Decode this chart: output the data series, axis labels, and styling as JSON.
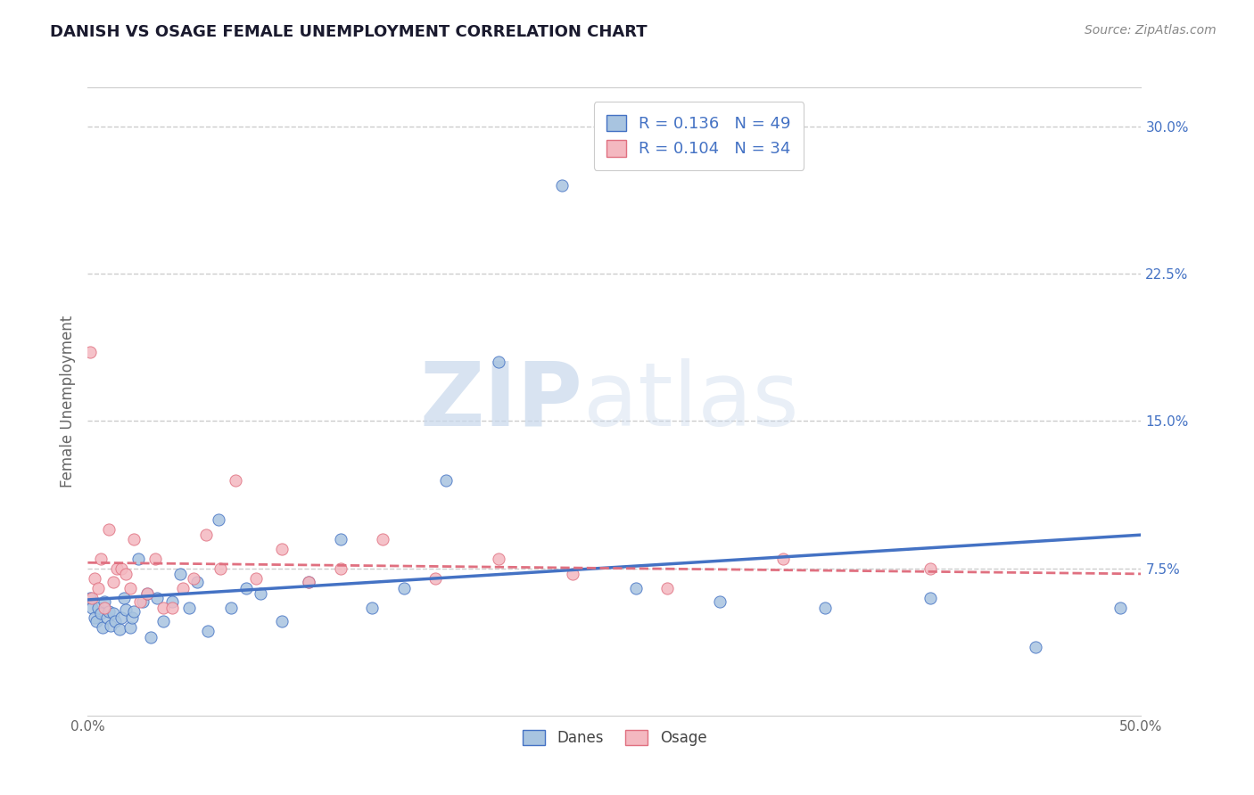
{
  "title": "DANISH VS OSAGE FEMALE UNEMPLOYMENT CORRELATION CHART",
  "source": "Source: ZipAtlas.com",
  "xlabel": "",
  "ylabel": "Female Unemployment",
  "xlim": [
    0.0,
    0.5
  ],
  "ylim": [
    0.0,
    0.32
  ],
  "yticks": [
    0.0,
    0.075,
    0.15,
    0.225,
    0.3
  ],
  "ytick_labels": [
    "",
    "7.5%",
    "15.0%",
    "22.5%",
    "30.0%"
  ],
  "xticks": [
    0.0,
    0.1,
    0.2,
    0.3,
    0.4,
    0.5
  ],
  "xtick_labels": [
    "0.0%",
    "",
    "",
    "",
    "",
    "50.0%"
  ],
  "danes_color": "#a8c4e0",
  "osage_color": "#f4b8c0",
  "danes_line_color": "#4472c4",
  "osage_line_color": "#e07080",
  "danes_R": 0.136,
  "danes_N": 49,
  "osage_R": 0.104,
  "osage_N": 34,
  "legend_label_danes": "Danes",
  "legend_label_osage": "Osage",
  "watermark_zip": "ZIP",
  "watermark_atlas": "atlas",
  "background_color": "#ffffff",
  "grid_color": "#cccccc",
  "title_color": "#4472c4",
  "danes_x": [
    0.001,
    0.002,
    0.003,
    0.004,
    0.005,
    0.006,
    0.007,
    0.008,
    0.009,
    0.01,
    0.011,
    0.012,
    0.013,
    0.015,
    0.016,
    0.017,
    0.018,
    0.02,
    0.021,
    0.022,
    0.024,
    0.026,
    0.028,
    0.03,
    0.033,
    0.036,
    0.04,
    0.044,
    0.048,
    0.052,
    0.057,
    0.062,
    0.068,
    0.075,
    0.082,
    0.092,
    0.105,
    0.12,
    0.135,
    0.15,
    0.17,
    0.195,
    0.225,
    0.26,
    0.3,
    0.35,
    0.4,
    0.45,
    0.49
  ],
  "danes_y": [
    0.06,
    0.055,
    0.05,
    0.048,
    0.055,
    0.052,
    0.045,
    0.058,
    0.05,
    0.053,
    0.046,
    0.052,
    0.048,
    0.044,
    0.05,
    0.06,
    0.054,
    0.045,
    0.05,
    0.053,
    0.08,
    0.058,
    0.062,
    0.04,
    0.06,
    0.048,
    0.058,
    0.072,
    0.055,
    0.068,
    0.043,
    0.1,
    0.055,
    0.065,
    0.062,
    0.048,
    0.068,
    0.09,
    0.055,
    0.065,
    0.12,
    0.18,
    0.27,
    0.065,
    0.058,
    0.055,
    0.06,
    0.035,
    0.055
  ],
  "osage_x": [
    0.001,
    0.002,
    0.003,
    0.005,
    0.006,
    0.008,
    0.01,
    0.012,
    0.014,
    0.016,
    0.018,
    0.02,
    0.022,
    0.025,
    0.028,
    0.032,
    0.036,
    0.04,
    0.045,
    0.05,
    0.056,
    0.063,
    0.07,
    0.08,
    0.092,
    0.105,
    0.12,
    0.14,
    0.165,
    0.195,
    0.23,
    0.275,
    0.33,
    0.4
  ],
  "osage_y": [
    0.185,
    0.06,
    0.07,
    0.065,
    0.08,
    0.055,
    0.095,
    0.068,
    0.075,
    0.075,
    0.072,
    0.065,
    0.09,
    0.058,
    0.062,
    0.08,
    0.055,
    0.055,
    0.065,
    0.07,
    0.092,
    0.075,
    0.12,
    0.07,
    0.085,
    0.068,
    0.075,
    0.09,
    0.07,
    0.08,
    0.072,
    0.065,
    0.08,
    0.075
  ]
}
